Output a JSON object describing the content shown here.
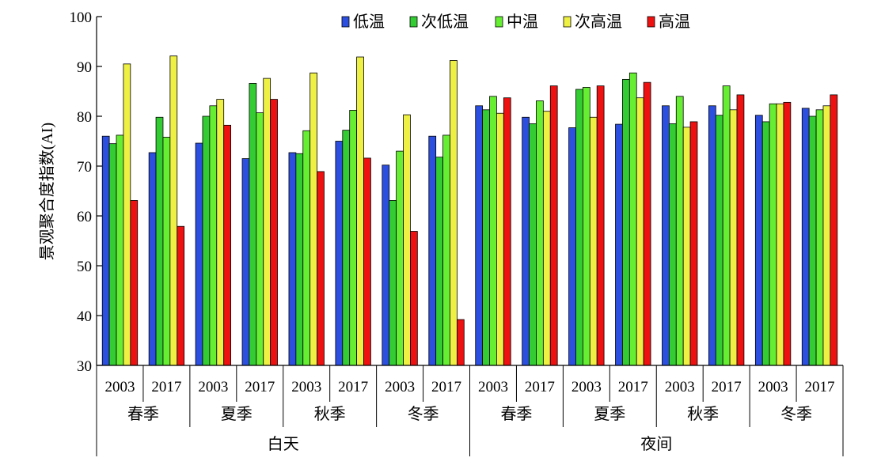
{
  "chart_data": {
    "type": "bar",
    "title": "",
    "ylabel": "景观聚合度指数(AI)",
    "xlabel": "",
    "ylim": [
      30,
      100
    ],
    "yticks": [
      30,
      40,
      50,
      60,
      70,
      80,
      90,
      100
    ],
    "grid": false,
    "legend_position": "top",
    "categories": [
      "2003",
      "2017",
      "2003",
      "2017",
      "2003",
      "2017",
      "2003",
      "2017",
      "2003",
      "2017",
      "2003",
      "2017",
      "2003",
      "2017",
      "2003",
      "2017"
    ],
    "season_labels": [
      "春季",
      "夏季",
      "秋季",
      "冬季",
      "春季",
      "夏季",
      "秋季",
      "冬季"
    ],
    "period_labels": [
      "白天",
      "夜间"
    ],
    "series": [
      {
        "name": "低温",
        "color": "#2c4fe0",
        "values": [
          76.0,
          72.7,
          74.6,
          71.5,
          72.7,
          75.0,
          70.2,
          76.0,
          82.1,
          79.8,
          77.7,
          78.4,
          82.1,
          82.1,
          80.2,
          81.6
        ]
      },
      {
        "name": "次低温",
        "color": "#33cc33",
        "values": [
          74.5,
          79.8,
          80.0,
          86.6,
          72.5,
          77.2,
          63.1,
          71.8,
          81.3,
          78.5,
          85.4,
          87.4,
          78.5,
          80.2,
          78.9,
          80.0
        ]
      },
      {
        "name": "中温",
        "color": "#66ee33",
        "values": [
          76.2,
          75.8,
          82.1,
          80.7,
          77.1,
          81.2,
          73.0,
          76.2,
          84.0,
          83.1,
          85.8,
          88.7,
          84.0,
          86.1,
          82.5,
          81.3
        ]
      },
      {
        "name": "次高温",
        "color": "#eef044",
        "values": [
          90.5,
          92.1,
          83.4,
          87.6,
          88.7,
          91.9,
          80.3,
          91.2,
          80.6,
          81.0,
          79.8,
          83.7,
          77.8,
          81.3,
          82.5,
          82.1
        ]
      },
      {
        "name": "高温",
        "color": "#ee1111",
        "values": [
          63.1,
          57.9,
          78.2,
          83.4,
          68.9,
          71.6,
          56.9,
          39.2,
          83.7,
          86.1,
          86.1,
          86.8,
          78.9,
          84.3,
          82.8,
          84.3
        ]
      }
    ]
  }
}
